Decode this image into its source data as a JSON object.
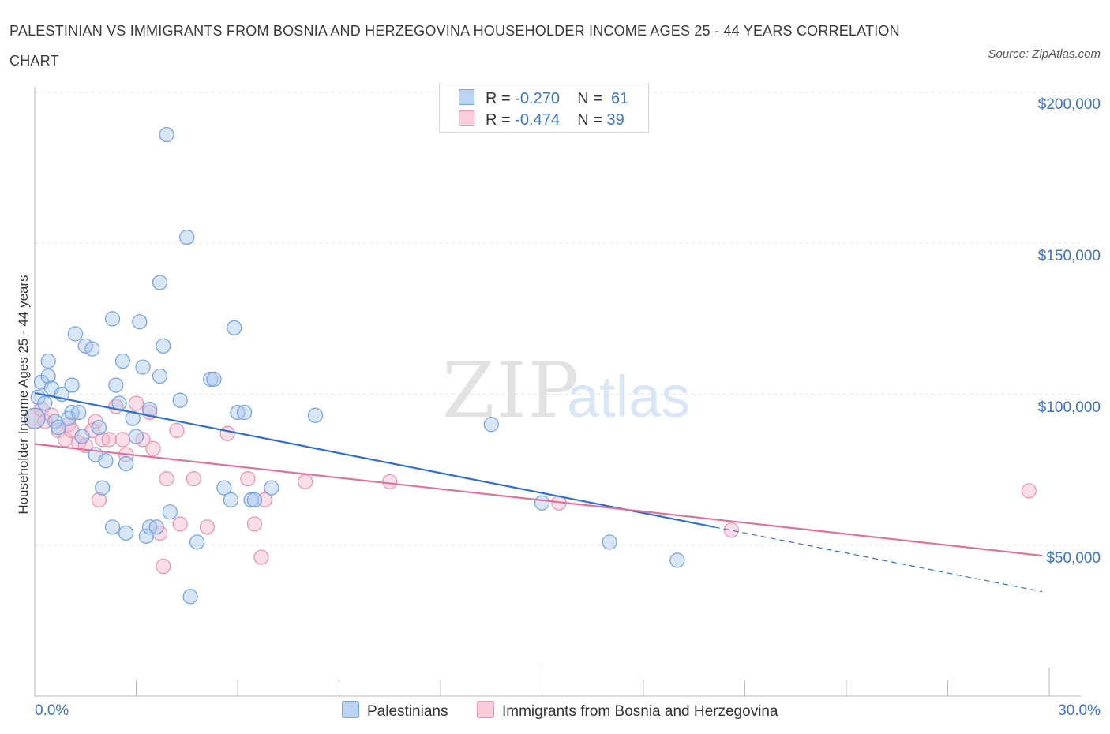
{
  "title": "PALESTINIAN VS IMMIGRANTS FROM BOSNIA AND HERZEGOVINA HOUSEHOLDER INCOME AGES 25 - 44 YEARS CORRELATION CHART",
  "source": "Source: ZipAtlas.com",
  "watermark": {
    "zip": "ZIP",
    "atlas": "atlas"
  },
  "legend": {
    "rows": [
      {
        "r_label": "R =",
        "r_value": "-0.270",
        "n_label": "N =",
        "n_value": "61",
        "color": "#a9c8f0"
      },
      {
        "r_label": "R =",
        "r_value": "-0.474",
        "n_label": "N =",
        "n_value": "39",
        "color": "#f6b8cb"
      }
    ]
  },
  "bottom_legend": [
    "Palestinians",
    "Immigrants from Bosnia and Herzegovina"
  ],
  "y_tick_labels": [
    "$200,000",
    "$150,000",
    "$100,000",
    "$50,000"
  ],
  "x_tick_labels": [
    "0.0%",
    "30.0%"
  ],
  "chart_data": {
    "type": "scatter",
    "title": "PALESTINIAN VS IMMIGRANTS FROM BOSNIA AND HERZEGOVINA HOUSEHOLDER INCOME AGES 25 - 44 YEARS CORRELATION CHART",
    "xlabel": "",
    "ylabel": "Householder Income Ages 25 - 44 years",
    "xlim": [
      0,
      30
    ],
    "ylim": [
      0,
      200000
    ],
    "y_ticks": [
      50000,
      100000,
      150000,
      200000
    ],
    "grid": true,
    "legend_position": "top-center",
    "series": [
      {
        "name": "Palestinians",
        "color": "#6fa0e0",
        "fill": "#a9c8f0",
        "r": -0.27,
        "n": 61,
        "trend": {
          "x": [
            0,
            20.1
          ],
          "y": [
            100400,
            56000
          ],
          "dashed_extension": {
            "x": [
              20.1,
              29.8
            ],
            "y": [
              56000,
              34600
            ]
          },
          "color": "#2e6fd1"
        },
        "points": [
          [
            0.0,
            92000
          ],
          [
            0.1,
            99000
          ],
          [
            0.2,
            104000
          ],
          [
            0.3,
            97000
          ],
          [
            0.4,
            111000
          ],
          [
            0.4,
            106000
          ],
          [
            0.5,
            102000
          ],
          [
            0.6,
            91000
          ],
          [
            0.7,
            89000
          ],
          [
            0.8,
            100000
          ],
          [
            1.0,
            92000
          ],
          [
            1.1,
            94000
          ],
          [
            1.1,
            103000
          ],
          [
            1.2,
            120000
          ],
          [
            1.3,
            94000
          ],
          [
            1.4,
            86000
          ],
          [
            1.5,
            116000
          ],
          [
            1.7,
            115000
          ],
          [
            1.8,
            80000
          ],
          [
            1.9,
            89000
          ],
          [
            2.0,
            69000
          ],
          [
            2.1,
            78000
          ],
          [
            2.3,
            56000
          ],
          [
            2.3,
            125000
          ],
          [
            2.4,
            103000
          ],
          [
            2.5,
            97000
          ],
          [
            2.6,
            111000
          ],
          [
            2.7,
            77000
          ],
          [
            2.7,
            54000
          ],
          [
            2.9,
            92000
          ],
          [
            3.0,
            86000
          ],
          [
            3.1,
            124000
          ],
          [
            3.2,
            109000
          ],
          [
            3.3,
            53000
          ],
          [
            3.4,
            56000
          ],
          [
            3.4,
            95000
          ],
          [
            3.6,
            56000
          ],
          [
            3.7,
            106000
          ],
          [
            3.7,
            137000
          ],
          [
            3.8,
            116000
          ],
          [
            3.9,
            186000
          ],
          [
            4.0,
            61000
          ],
          [
            4.3,
            98000
          ],
          [
            4.5,
            152000
          ],
          [
            4.6,
            33000
          ],
          [
            4.8,
            51000
          ],
          [
            5.2,
            105000
          ],
          [
            5.3,
            105000
          ],
          [
            5.6,
            69000
          ],
          [
            5.8,
            65000
          ],
          [
            5.9,
            122000
          ],
          [
            6.0,
            94000
          ],
          [
            6.2,
            94000
          ],
          [
            6.4,
            65000
          ],
          [
            6.5,
            65000
          ],
          [
            7.0,
            69000
          ],
          [
            8.3,
            93000
          ],
          [
            13.5,
            90000
          ],
          [
            15.0,
            64000
          ],
          [
            17.0,
            51000
          ],
          [
            19.0,
            45000
          ]
        ]
      },
      {
        "name": "Immigrants from Bosnia and Herzegovina",
        "color": "#ee8faa",
        "fill": "#f6b8cb",
        "r": -0.474,
        "n": 39,
        "trend": {
          "x": [
            0,
            29.8
          ],
          "y": [
            83500,
            46500
          ],
          "color": "#e2709a"
        },
        "points": [
          [
            0.0,
            92000
          ],
          [
            0.2,
            95000
          ],
          [
            0.3,
            91000
          ],
          [
            0.5,
            93000
          ],
          [
            0.7,
            88000
          ],
          [
            0.9,
            85000
          ],
          [
            1.0,
            90000
          ],
          [
            1.1,
            88000
          ],
          [
            1.3,
            84000
          ],
          [
            1.5,
            83000
          ],
          [
            1.7,
            88000
          ],
          [
            1.8,
            91000
          ],
          [
            1.9,
            65000
          ],
          [
            2.0,
            85000
          ],
          [
            2.2,
            85000
          ],
          [
            2.4,
            96000
          ],
          [
            2.6,
            85000
          ],
          [
            2.7,
            80000
          ],
          [
            3.0,
            97000
          ],
          [
            3.2,
            85000
          ],
          [
            3.4,
            94000
          ],
          [
            3.5,
            82000
          ],
          [
            3.7,
            54000
          ],
          [
            3.8,
            43000
          ],
          [
            3.9,
            72000
          ],
          [
            4.2,
            88000
          ],
          [
            4.3,
            57000
          ],
          [
            4.7,
            72000
          ],
          [
            5.1,
            56000
          ],
          [
            5.7,
            87000
          ],
          [
            6.3,
            72000
          ],
          [
            6.5,
            57000
          ],
          [
            6.7,
            46000
          ],
          [
            6.8,
            65000
          ],
          [
            8.0,
            71000
          ],
          [
            10.5,
            71000
          ],
          [
            15.5,
            64000
          ],
          [
            20.6,
            55000
          ],
          [
            29.4,
            68000
          ]
        ]
      }
    ]
  }
}
